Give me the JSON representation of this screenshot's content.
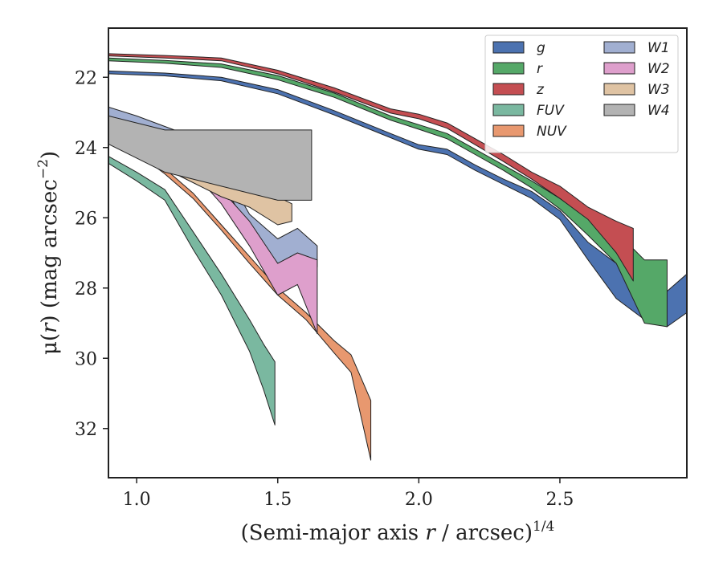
{
  "chart_data": {
    "type": "area",
    "xlabel": "(Semi-major axis r / arcsec)",
    "xlabel_pre": "(Semi-major axis ",
    "xlabel_var": "r",
    "xlabel_post": " / arcsec)",
    "xlabel_sup": "1/4",
    "ylabel_pre": "μ(",
    "ylabel_var": "r",
    "ylabel_post": ") (mag arcsec",
    "ylabel_sup": "−2",
    "ylabel_close": ")",
    "xlim": [
      0.9,
      2.95
    ],
    "ylim": [
      33.4,
      20.6
    ],
    "y_inverted": true,
    "x_ticks": [
      1.0,
      1.5,
      2.0,
      2.5
    ],
    "x_tick_labels": [
      "1.0",
      "1.5",
      "2.0",
      "2.5"
    ],
    "y_ticks": [
      22,
      24,
      26,
      28,
      30,
      32
    ],
    "y_tick_labels": [
      "22",
      "24",
      "26",
      "28",
      "30",
      "32"
    ],
    "grid": false,
    "legend_position": "top-right",
    "legend_columns": 2,
    "series": [
      {
        "name": "g",
        "color": "#4c72b0",
        "upper": [
          [
            0.9,
            21.82
          ],
          [
            1.1,
            21.88
          ],
          [
            1.3,
            22.0
          ],
          [
            1.5,
            22.35
          ],
          [
            1.7,
            22.95
          ],
          [
            1.9,
            23.6
          ],
          [
            2.0,
            23.92
          ],
          [
            2.1,
            24.05
          ],
          [
            2.2,
            24.5
          ],
          [
            2.3,
            24.9
          ],
          [
            2.4,
            25.25
          ],
          [
            2.5,
            25.8
          ],
          [
            2.6,
            26.7
          ],
          [
            2.7,
            27.3
          ],
          [
            2.8,
            28.0
          ],
          [
            2.85,
            28.3
          ],
          [
            2.95,
            27.6
          ]
        ],
        "lower": [
          [
            0.9,
            21.9
          ],
          [
            1.1,
            21.96
          ],
          [
            1.3,
            22.1
          ],
          [
            1.5,
            22.47
          ],
          [
            1.7,
            23.07
          ],
          [
            1.9,
            23.72
          ],
          [
            2.0,
            24.05
          ],
          [
            2.1,
            24.2
          ],
          [
            2.2,
            24.65
          ],
          [
            2.3,
            25.05
          ],
          [
            2.4,
            25.45
          ],
          [
            2.5,
            26.05
          ],
          [
            2.6,
            27.2
          ],
          [
            2.7,
            28.3
          ],
          [
            2.8,
            28.9
          ],
          [
            2.88,
            29.1
          ],
          [
            2.95,
            28.7
          ]
        ]
      },
      {
        "name": "r",
        "color": "#55a868",
        "upper": [
          [
            0.9,
            21.45
          ],
          [
            1.1,
            21.52
          ],
          [
            1.3,
            21.62
          ],
          [
            1.5,
            21.95
          ],
          [
            1.7,
            22.45
          ],
          [
            1.9,
            23.1
          ],
          [
            2.0,
            23.35
          ],
          [
            2.1,
            23.6
          ],
          [
            2.2,
            24.05
          ],
          [
            2.3,
            24.5
          ],
          [
            2.4,
            24.95
          ],
          [
            2.5,
            25.45
          ],
          [
            2.6,
            25.95
          ],
          [
            2.7,
            26.4
          ],
          [
            2.8,
            27.2
          ],
          [
            2.88,
            27.2
          ]
        ],
        "lower": [
          [
            0.9,
            21.53
          ],
          [
            1.1,
            21.6
          ],
          [
            1.3,
            21.72
          ],
          [
            1.5,
            22.07
          ],
          [
            1.7,
            22.57
          ],
          [
            1.9,
            23.22
          ],
          [
            2.0,
            23.48
          ],
          [
            2.1,
            23.75
          ],
          [
            2.2,
            24.2
          ],
          [
            2.3,
            24.65
          ],
          [
            2.4,
            25.15
          ],
          [
            2.5,
            25.75
          ],
          [
            2.6,
            26.5
          ],
          [
            2.7,
            27.3
          ],
          [
            2.8,
            29.0
          ],
          [
            2.88,
            29.1
          ]
        ]
      },
      {
        "name": "z",
        "color": "#c44e52",
        "upper": [
          [
            0.9,
            21.33
          ],
          [
            1.1,
            21.38
          ],
          [
            1.3,
            21.45
          ],
          [
            1.5,
            21.8
          ],
          [
            1.7,
            22.3
          ],
          [
            1.9,
            22.9
          ],
          [
            2.0,
            23.05
          ],
          [
            2.1,
            23.3
          ],
          [
            2.2,
            23.75
          ],
          [
            2.3,
            24.2
          ],
          [
            2.4,
            24.7
          ],
          [
            2.5,
            25.1
          ],
          [
            2.6,
            25.7
          ],
          [
            2.7,
            26.1
          ],
          [
            2.76,
            26.3
          ]
        ],
        "lower": [
          [
            0.9,
            21.39
          ],
          [
            1.1,
            21.45
          ],
          [
            1.3,
            21.53
          ],
          [
            1.5,
            21.9
          ],
          [
            1.7,
            22.42
          ],
          [
            1.9,
            23.02
          ],
          [
            2.0,
            23.18
          ],
          [
            2.1,
            23.45
          ],
          [
            2.2,
            23.92
          ],
          [
            2.3,
            24.4
          ],
          [
            2.4,
            24.9
          ],
          [
            2.5,
            25.45
          ],
          [
            2.6,
            26.05
          ],
          [
            2.7,
            27.0
          ],
          [
            2.76,
            27.8
          ]
        ]
      },
      {
        "name": "FUV",
        "color": "#7ab8a0",
        "upper": [
          [
            0.9,
            24.25
          ],
          [
            1.0,
            24.7
          ],
          [
            1.1,
            25.2
          ],
          [
            1.2,
            26.4
          ],
          [
            1.3,
            27.6
          ],
          [
            1.4,
            28.9
          ],
          [
            1.45,
            29.6
          ],
          [
            1.49,
            30.1
          ]
        ],
        "lower": [
          [
            0.9,
            24.45
          ],
          [
            1.0,
            24.95
          ],
          [
            1.1,
            25.5
          ],
          [
            1.2,
            26.9
          ],
          [
            1.3,
            28.2
          ],
          [
            1.4,
            29.8
          ],
          [
            1.45,
            30.9
          ],
          [
            1.49,
            31.9
          ]
        ]
      },
      {
        "name": "NUV",
        "color": "#e8986f",
        "upper": [
          [
            0.9,
            23.55
          ],
          [
            1.0,
            24.0
          ],
          [
            1.1,
            24.6
          ],
          [
            1.2,
            25.3
          ],
          [
            1.3,
            26.2
          ],
          [
            1.4,
            27.1
          ],
          [
            1.5,
            28.0
          ],
          [
            1.6,
            28.7
          ],
          [
            1.7,
            29.5
          ],
          [
            1.76,
            29.9
          ],
          [
            1.83,
            31.2
          ]
        ],
        "lower": [
          [
            0.9,
            23.7
          ],
          [
            1.0,
            24.15
          ],
          [
            1.1,
            24.75
          ],
          [
            1.2,
            25.45
          ],
          [
            1.3,
            26.35
          ],
          [
            1.4,
            27.3
          ],
          [
            1.5,
            28.2
          ],
          [
            1.6,
            28.9
          ],
          [
            1.7,
            29.85
          ],
          [
            1.76,
            30.4
          ],
          [
            1.83,
            32.9
          ]
        ]
      },
      {
        "name": "W1",
        "color": "#a1afd1",
        "upper": [
          [
            0.9,
            22.85
          ],
          [
            1.0,
            23.1
          ],
          [
            1.1,
            23.4
          ],
          [
            1.2,
            23.7
          ],
          [
            1.3,
            24.5
          ],
          [
            1.4,
            25.9
          ],
          [
            1.5,
            26.6
          ],
          [
            1.57,
            26.3
          ],
          [
            1.64,
            26.8
          ]
        ],
        "lower": [
          [
            0.9,
            23.2
          ],
          [
            1.0,
            23.5
          ],
          [
            1.1,
            23.8
          ],
          [
            1.2,
            24.2
          ],
          [
            1.3,
            25.0
          ],
          [
            1.4,
            26.3
          ],
          [
            1.5,
            27.3
          ],
          [
            1.57,
            27.1
          ],
          [
            1.64,
            27.4
          ]
        ]
      },
      {
        "name": "W2",
        "color": "#de9fcc",
        "upper": [
          [
            0.9,
            23.4
          ],
          [
            1.0,
            23.6
          ],
          [
            1.1,
            23.95
          ],
          [
            1.2,
            24.3
          ],
          [
            1.3,
            25.2
          ],
          [
            1.4,
            26.1
          ],
          [
            1.5,
            27.3
          ],
          [
            1.57,
            27.0
          ],
          [
            1.64,
            27.2
          ]
        ],
        "lower": [
          [
            0.9,
            23.7
          ],
          [
            1.0,
            23.9
          ],
          [
            1.1,
            24.3
          ],
          [
            1.2,
            24.7
          ],
          [
            1.3,
            25.6
          ],
          [
            1.4,
            26.8
          ],
          [
            1.5,
            28.2
          ],
          [
            1.57,
            27.9
          ],
          [
            1.64,
            29.3
          ]
        ]
      },
      {
        "name": "W3",
        "color": "#dfc3a3",
        "upper": [
          [
            0.9,
            23.3
          ],
          [
            1.0,
            23.6
          ],
          [
            1.1,
            24.0
          ],
          [
            1.2,
            24.4
          ],
          [
            1.3,
            24.8
          ],
          [
            1.4,
            25.0
          ],
          [
            1.5,
            25.4
          ],
          [
            1.55,
            25.6
          ]
        ],
        "lower": [
          [
            0.9,
            23.55
          ],
          [
            1.0,
            24.0
          ],
          [
            1.1,
            24.6
          ],
          [
            1.2,
            25.0
          ],
          [
            1.3,
            25.4
          ],
          [
            1.4,
            25.7
          ],
          [
            1.5,
            26.2
          ],
          [
            1.55,
            26.1
          ]
        ]
      },
      {
        "name": "W4",
        "color": "#b3b3b3",
        "upper": [
          [
            0.9,
            23.1
          ],
          [
            1.0,
            23.3
          ],
          [
            1.1,
            23.5
          ],
          [
            1.2,
            23.5
          ],
          [
            1.3,
            23.5
          ],
          [
            1.4,
            23.5
          ],
          [
            1.5,
            23.5
          ],
          [
            1.62,
            23.5
          ]
        ],
        "lower": [
          [
            0.9,
            23.9
          ],
          [
            1.0,
            24.3
          ],
          [
            1.1,
            24.7
          ],
          [
            1.2,
            24.9
          ],
          [
            1.3,
            25.1
          ],
          [
            1.4,
            25.3
          ],
          [
            1.5,
            25.5
          ],
          [
            1.62,
            25.5
          ]
        ]
      }
    ]
  }
}
